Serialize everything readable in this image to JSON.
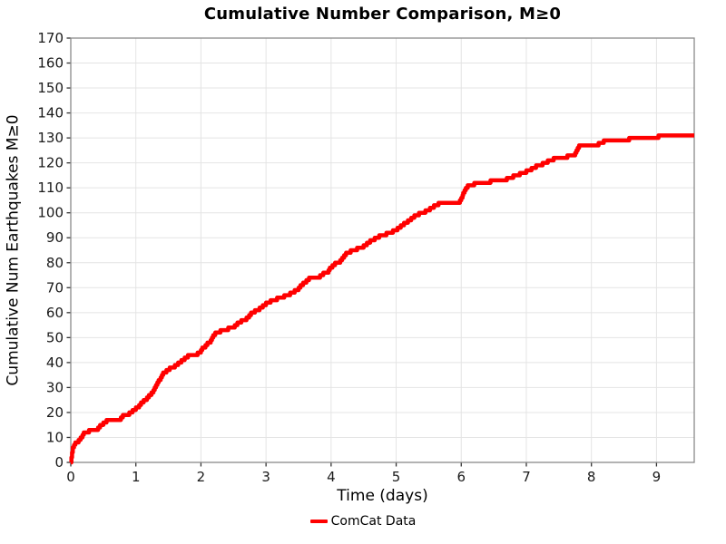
{
  "chart_data": {
    "type": "line",
    "subtype": "cumulative-step",
    "title": "Cumulative Number Comparison, M≥0",
    "xlabel": "Time (days)",
    "ylabel": "Cumulative Num Earthquakes M≥0",
    "xlim": [
      0,
      9.58
    ],
    "ylim": [
      0,
      170
    ],
    "xticks": [
      0,
      1,
      2,
      3,
      4,
      5,
      6,
      7,
      8,
      9
    ],
    "yticks": [
      0,
      10,
      20,
      30,
      40,
      50,
      60,
      70,
      80,
      90,
      100,
      110,
      120,
      130,
      140,
      150,
      160,
      170
    ],
    "grid": true,
    "legend_position": "bottom-center",
    "colors": {
      "series_red": "#ff0000",
      "gridline": "#e4e4e4",
      "spine": "#8a8a8a",
      "tick": "#333333",
      "text": "#000000"
    },
    "series": [
      {
        "name": "ComCat Data",
        "color": "#ff0000",
        "step": "after",
        "points": [
          [
            0.0,
            0
          ],
          [
            0.01,
            2
          ],
          [
            0.02,
            4
          ],
          [
            0.03,
            6
          ],
          [
            0.05,
            7
          ],
          [
            0.07,
            8
          ],
          [
            0.12,
            9
          ],
          [
            0.15,
            10
          ],
          [
            0.18,
            11
          ],
          [
            0.2,
            12
          ],
          [
            0.28,
            13
          ],
          [
            0.42,
            14
          ],
          [
            0.45,
            15
          ],
          [
            0.5,
            16
          ],
          [
            0.55,
            17
          ],
          [
            0.77,
            18
          ],
          [
            0.8,
            19
          ],
          [
            0.9,
            20
          ],
          [
            0.95,
            21
          ],
          [
            1.0,
            22
          ],
          [
            1.05,
            23
          ],
          [
            1.08,
            24
          ],
          [
            1.12,
            25
          ],
          [
            1.17,
            26
          ],
          [
            1.2,
            27
          ],
          [
            1.24,
            28
          ],
          [
            1.27,
            29
          ],
          [
            1.29,
            30
          ],
          [
            1.31,
            31
          ],
          [
            1.33,
            32
          ],
          [
            1.35,
            33
          ],
          [
            1.38,
            34
          ],
          [
            1.4,
            35
          ],
          [
            1.42,
            36
          ],
          [
            1.47,
            37
          ],
          [
            1.52,
            38
          ],
          [
            1.6,
            39
          ],
          [
            1.65,
            40
          ],
          [
            1.7,
            41
          ],
          [
            1.75,
            42
          ],
          [
            1.8,
            43
          ],
          [
            1.95,
            44
          ],
          [
            2.0,
            45
          ],
          [
            2.02,
            46
          ],
          [
            2.07,
            47
          ],
          [
            2.1,
            48
          ],
          [
            2.15,
            49
          ],
          [
            2.17,
            50
          ],
          [
            2.19,
            51
          ],
          [
            2.22,
            52
          ],
          [
            2.3,
            53
          ],
          [
            2.42,
            54
          ],
          [
            2.52,
            55
          ],
          [
            2.56,
            56
          ],
          [
            2.62,
            57
          ],
          [
            2.7,
            58
          ],
          [
            2.74,
            59
          ],
          [
            2.77,
            60
          ],
          [
            2.83,
            61
          ],
          [
            2.9,
            62
          ],
          [
            2.95,
            63
          ],
          [
            3.0,
            64
          ],
          [
            3.07,
            65
          ],
          [
            3.17,
            66
          ],
          [
            3.28,
            67
          ],
          [
            3.37,
            68
          ],
          [
            3.44,
            69
          ],
          [
            3.5,
            70
          ],
          [
            3.53,
            71
          ],
          [
            3.57,
            72
          ],
          [
            3.62,
            73
          ],
          [
            3.66,
            74
          ],
          [
            3.83,
            75
          ],
          [
            3.88,
            76
          ],
          [
            3.96,
            77
          ],
          [
            3.98,
            78
          ],
          [
            4.02,
            79
          ],
          [
            4.06,
            80
          ],
          [
            4.14,
            81
          ],
          [
            4.17,
            82
          ],
          [
            4.2,
            83
          ],
          [
            4.23,
            84
          ],
          [
            4.3,
            85
          ],
          [
            4.4,
            86
          ],
          [
            4.5,
            87
          ],
          [
            4.55,
            88
          ],
          [
            4.6,
            89
          ],
          [
            4.67,
            90
          ],
          [
            4.74,
            91
          ],
          [
            4.85,
            92
          ],
          [
            4.95,
            93
          ],
          [
            5.02,
            94
          ],
          [
            5.07,
            95
          ],
          [
            5.12,
            96
          ],
          [
            5.18,
            97
          ],
          [
            5.23,
            98
          ],
          [
            5.28,
            99
          ],
          [
            5.35,
            100
          ],
          [
            5.45,
            101
          ],
          [
            5.52,
            102
          ],
          [
            5.58,
            103
          ],
          [
            5.65,
            104
          ],
          [
            5.98,
            105
          ],
          [
            6.0,
            106
          ],
          [
            6.02,
            107
          ],
          [
            6.03,
            108
          ],
          [
            6.05,
            109
          ],
          [
            6.07,
            110
          ],
          [
            6.1,
            111
          ],
          [
            6.2,
            112
          ],
          [
            6.45,
            113
          ],
          [
            6.7,
            114
          ],
          [
            6.8,
            115
          ],
          [
            6.9,
            116
          ],
          [
            7.0,
            117
          ],
          [
            7.08,
            118
          ],
          [
            7.15,
            119
          ],
          [
            7.25,
            120
          ],
          [
            7.33,
            121
          ],
          [
            7.42,
            122
          ],
          [
            7.63,
            123
          ],
          [
            7.75,
            124
          ],
          [
            7.77,
            125
          ],
          [
            7.79,
            126
          ],
          [
            7.81,
            127
          ],
          [
            8.11,
            128
          ],
          [
            8.19,
            129
          ],
          [
            8.58,
            130
          ],
          [
            9.03,
            131
          ]
        ],
        "final_value": 131
      }
    ],
    "legend": [
      {
        "label": "ComCat Data",
        "color": "#ff0000"
      }
    ]
  }
}
